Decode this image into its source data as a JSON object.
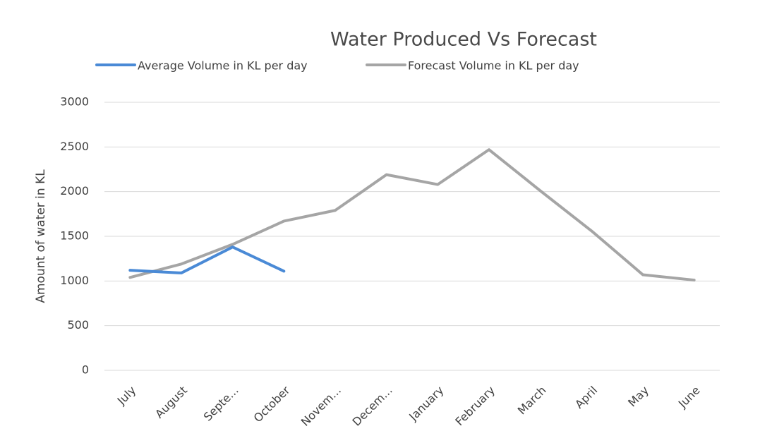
{
  "chart_data": {
    "type": "line",
    "title": "Water Produced Vs Forecast",
    "y_label": "Amount of water in KL",
    "categories": [
      "July",
      "August",
      "Septe...",
      "October",
      "Novem...",
      "Decem...",
      "January",
      "February",
      "March",
      "April",
      "May",
      "June"
    ],
    "series": [
      {
        "name": "Average Volume in KL per day",
        "color": "#4a8ad6",
        "values": [
          1120,
          1090,
          1380,
          1110,
          null,
          null,
          null,
          null,
          null,
          null,
          null,
          null
        ]
      },
      {
        "name": "Forecast Volume in KL per day",
        "color": "#a5a5a5",
        "values": [
          1040,
          1190,
          1410,
          1670,
          1790,
          2190,
          2080,
          2470,
          2010,
          1560,
          1070,
          1010
        ]
      }
    ],
    "ylim": [
      0,
      3000
    ],
    "yticks": [
      0,
      500,
      1000,
      1500,
      2000,
      2500,
      3000
    ],
    "grid": true,
    "legend": "top"
  }
}
